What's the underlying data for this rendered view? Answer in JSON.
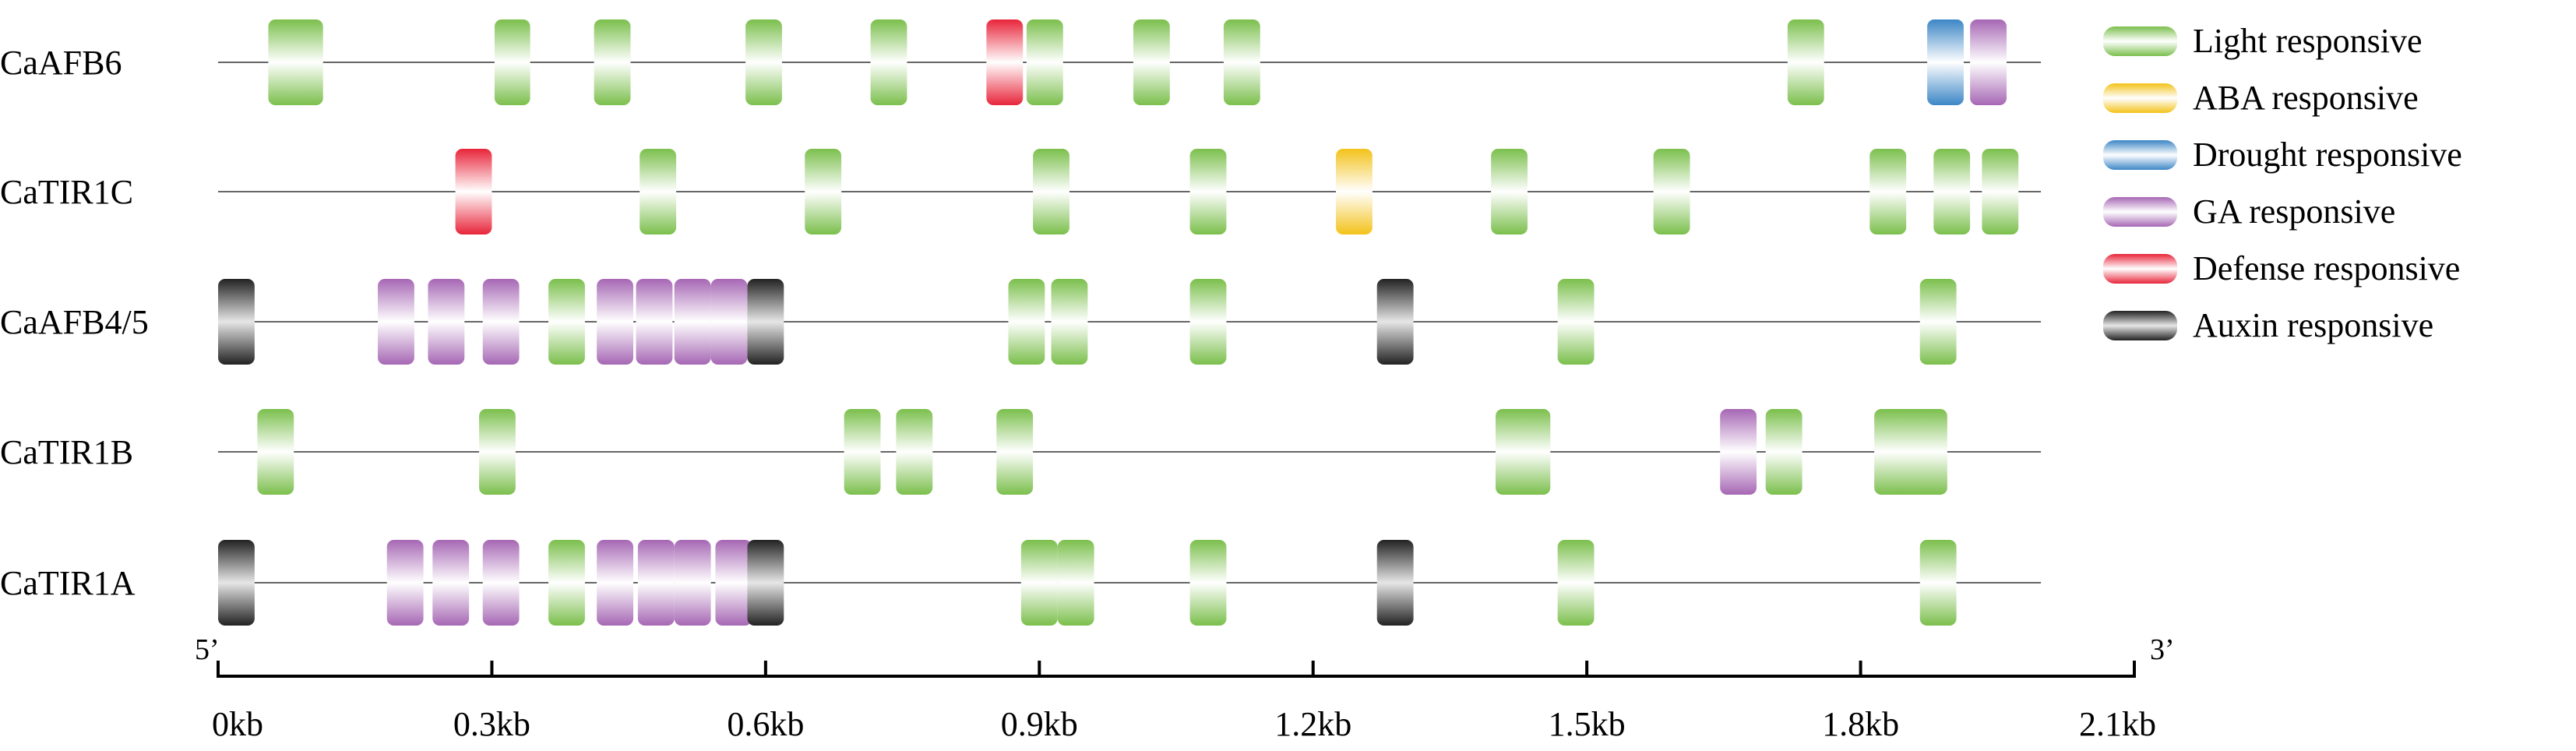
{
  "colors": {
    "light": "#7bbf4c",
    "aba": "#f3c21a",
    "drought": "#3c86c6",
    "ga": "#a667b4",
    "defense": "#e8253a",
    "auxin": "#222222"
  },
  "legend": [
    {
      "type": "light",
      "label": "Light responsive"
    },
    {
      "type": "aba",
      "label": "ABA responsive"
    },
    {
      "type": "drought",
      "label": "Drought responsive"
    },
    {
      "type": "ga",
      "label": "GA responsive"
    },
    {
      "type": "defense",
      "label": "Defense responsive"
    },
    {
      "type": "auxin",
      "label": "Auxin responsive"
    }
  ],
  "axis": {
    "ticks": [
      0,
      0.3,
      0.6,
      0.9,
      1.2,
      1.5,
      1.8,
      2.1
    ],
    "tick_labels": [
      "0kb",
      "0.3kb",
      "0.6kb",
      "0.9kb",
      "1.2kb",
      "1.5kb",
      "1.8kb",
      "2.1kb"
    ],
    "five_prime_label": "5’",
    "three_prime_label": "3’"
  },
  "genes": [
    {
      "name": "CaAFB6",
      "elements": [
        {
          "type": "light",
          "start": 0.055,
          "end": 0.115
        },
        {
          "type": "light",
          "start": 0.303,
          "end": 0.342
        },
        {
          "type": "light",
          "start": 0.412,
          "end": 0.452
        },
        {
          "type": "light",
          "start": 0.578,
          "end": 0.618
        },
        {
          "type": "light",
          "start": 0.715,
          "end": 0.755
        },
        {
          "type": "defense",
          "start": 0.842,
          "end": 0.882
        },
        {
          "type": "light",
          "start": 0.886,
          "end": 0.926
        },
        {
          "type": "light",
          "start": 1.003,
          "end": 1.043
        },
        {
          "type": "light",
          "start": 1.102,
          "end": 1.142
        },
        {
          "type": "light",
          "start": 1.72,
          "end": 1.76
        },
        {
          "type": "drought",
          "start": 1.873,
          "end": 1.913
        },
        {
          "type": "ga",
          "start": 1.92,
          "end": 1.96
        }
      ]
    },
    {
      "name": "CaTIR1C",
      "elements": [
        {
          "type": "defense",
          "start": 0.26,
          "end": 0.3
        },
        {
          "type": "light",
          "start": 0.462,
          "end": 0.502
        },
        {
          "type": "light",
          "start": 0.643,
          "end": 0.683
        },
        {
          "type": "light",
          "start": 0.893,
          "end": 0.933
        },
        {
          "type": "light",
          "start": 1.065,
          "end": 1.105
        },
        {
          "type": "aba",
          "start": 1.225,
          "end": 1.265
        },
        {
          "type": "light",
          "start": 1.395,
          "end": 1.435
        },
        {
          "type": "light",
          "start": 1.573,
          "end": 1.613
        },
        {
          "type": "light",
          "start": 1.81,
          "end": 1.85
        },
        {
          "type": "light",
          "start": 1.88,
          "end": 1.92
        },
        {
          "type": "light",
          "start": 1.933,
          "end": 1.973
        }
      ]
    },
    {
      "name": "CaAFB4/5",
      "elements": [
        {
          "type": "auxin",
          "start": 0.0,
          "end": 0.04
        },
        {
          "type": "ga",
          "start": 0.175,
          "end": 0.215
        },
        {
          "type": "ga",
          "start": 0.23,
          "end": 0.27
        },
        {
          "type": "ga",
          "start": 0.29,
          "end": 0.33
        },
        {
          "type": "light",
          "start": 0.362,
          "end": 0.402
        },
        {
          "type": "ga",
          "start": 0.415,
          "end": 0.455
        },
        {
          "type": "ga",
          "start": 0.458,
          "end": 0.498
        },
        {
          "type": "ga",
          "start": 0.5,
          "end": 0.54
        },
        {
          "type": "ga",
          "start": 0.54,
          "end": 0.58
        },
        {
          "type": "auxin",
          "start": 0.58,
          "end": 0.62
        },
        {
          "type": "light",
          "start": 0.866,
          "end": 0.906
        },
        {
          "type": "light",
          "start": 0.913,
          "end": 0.953
        },
        {
          "type": "light",
          "start": 1.065,
          "end": 1.105
        },
        {
          "type": "auxin",
          "start": 1.27,
          "end": 1.31
        },
        {
          "type": "light",
          "start": 1.468,
          "end": 1.508
        },
        {
          "type": "light",
          "start": 1.865,
          "end": 1.905
        }
      ]
    },
    {
      "name": "CaTIR1B",
      "elements": [
        {
          "type": "light",
          "start": 0.043,
          "end": 0.083
        },
        {
          "type": "light",
          "start": 0.286,
          "end": 0.326
        },
        {
          "type": "light",
          "start": 0.686,
          "end": 0.726
        },
        {
          "type": "light",
          "start": 0.743,
          "end": 0.783
        },
        {
          "type": "light",
          "start": 0.853,
          "end": 0.893
        },
        {
          "type": "light",
          "start": 1.4,
          "end": 1.46
        },
        {
          "type": "ga",
          "start": 1.646,
          "end": 1.686
        },
        {
          "type": "light",
          "start": 1.696,
          "end": 1.736
        },
        {
          "type": "light",
          "start": 1.815,
          "end": 1.895
        }
      ]
    },
    {
      "name": "CaTIR1A",
      "elements": [
        {
          "type": "auxin",
          "start": 0.0,
          "end": 0.04
        },
        {
          "type": "ga",
          "start": 0.185,
          "end": 0.225
        },
        {
          "type": "ga",
          "start": 0.235,
          "end": 0.275
        },
        {
          "type": "ga",
          "start": 0.29,
          "end": 0.33
        },
        {
          "type": "light",
          "start": 0.362,
          "end": 0.402
        },
        {
          "type": "ga",
          "start": 0.415,
          "end": 0.455
        },
        {
          "type": "ga",
          "start": 0.46,
          "end": 0.5
        },
        {
          "type": "ga",
          "start": 0.5,
          "end": 0.54
        },
        {
          "type": "ga",
          "start": 0.545,
          "end": 0.585
        },
        {
          "type": "auxin",
          "start": 0.58,
          "end": 0.62
        },
        {
          "type": "light",
          "start": 0.88,
          "end": 0.92
        },
        {
          "type": "light",
          "start": 0.92,
          "end": 0.96
        },
        {
          "type": "light",
          "start": 1.065,
          "end": 1.105
        },
        {
          "type": "auxin",
          "start": 1.27,
          "end": 1.31
        },
        {
          "type": "light",
          "start": 1.468,
          "end": 1.508
        },
        {
          "type": "light",
          "start": 1.865,
          "end": 1.905
        }
      ]
    }
  ]
}
